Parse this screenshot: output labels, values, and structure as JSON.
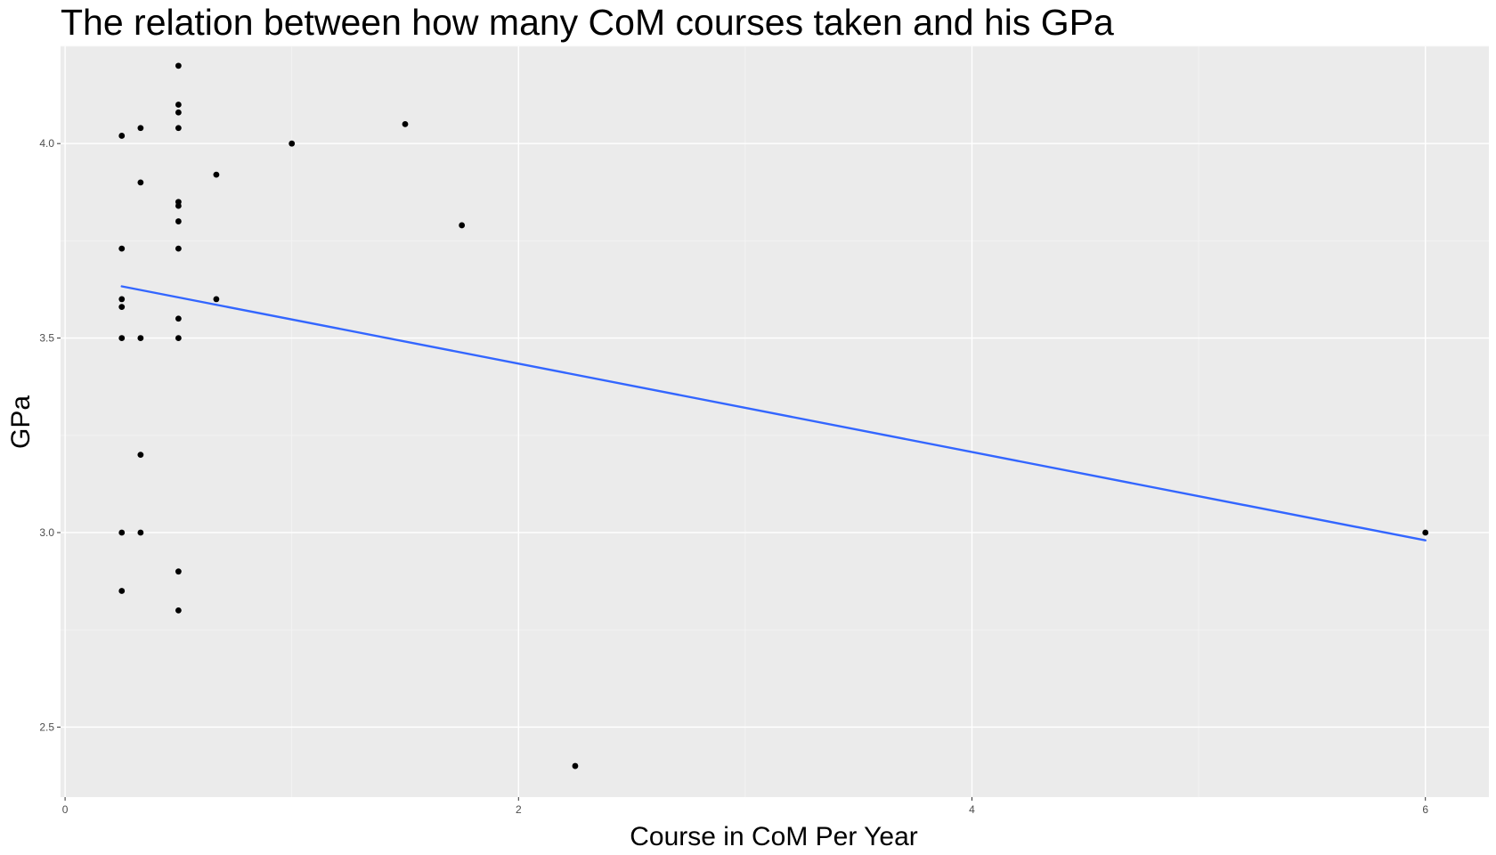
{
  "chart_data": {
    "type": "scatter",
    "title": "The relation between how many CoM courses taken and his GPa",
    "xlabel": "Course in CoM Per Year",
    "ylabel": "GPa",
    "xlim": [
      -0.02,
      6.28
    ],
    "ylim": [
      2.32,
      4.25
    ],
    "x_ticks": [
      0,
      2,
      4,
      6
    ],
    "x_tick_labels": [
      "0",
      "2",
      "4",
      "6"
    ],
    "y_ticks": [
      2.5,
      3.0,
      3.5,
      4.0
    ],
    "y_tick_labels": [
      "2.5",
      "3.0",
      "3.5",
      "4.0"
    ],
    "grid": true,
    "legend": "none",
    "colors": {
      "panel_background": "#ebebeb",
      "grid_major": "#ffffff",
      "grid_minor": "#f4f4f4",
      "points": "#000000",
      "trend_line": "#3366ff"
    },
    "points": [
      {
        "x": 0.25,
        "y": 4.02
      },
      {
        "x": 0.25,
        "y": 3.73
      },
      {
        "x": 0.25,
        "y": 3.6
      },
      {
        "x": 0.25,
        "y": 3.58
      },
      {
        "x": 0.25,
        "y": 3.5
      },
      {
        "x": 0.25,
        "y": 3.0
      },
      {
        "x": 0.25,
        "y": 2.85
      },
      {
        "x": 0.333,
        "y": 4.04
      },
      {
        "x": 0.333,
        "y": 3.9
      },
      {
        "x": 0.333,
        "y": 3.5
      },
      {
        "x": 0.333,
        "y": 3.2
      },
      {
        "x": 0.333,
        "y": 3.0
      },
      {
        "x": 0.5,
        "y": 4.2
      },
      {
        "x": 0.5,
        "y": 4.1
      },
      {
        "x": 0.5,
        "y": 4.08
      },
      {
        "x": 0.5,
        "y": 4.04
      },
      {
        "x": 0.5,
        "y": 3.85
      },
      {
        "x": 0.5,
        "y": 3.84
      },
      {
        "x": 0.5,
        "y": 3.8
      },
      {
        "x": 0.5,
        "y": 3.73
      },
      {
        "x": 0.5,
        "y": 3.55
      },
      {
        "x": 0.5,
        "y": 3.5
      },
      {
        "x": 0.5,
        "y": 2.9
      },
      {
        "x": 0.5,
        "y": 2.8
      },
      {
        "x": 0.667,
        "y": 3.92
      },
      {
        "x": 0.667,
        "y": 3.6
      },
      {
        "x": 1.0,
        "y": 4.0
      },
      {
        "x": 1.5,
        "y": 4.05
      },
      {
        "x": 1.75,
        "y": 3.79
      },
      {
        "x": 2.25,
        "y": 2.4
      },
      {
        "x": 6.0,
        "y": 3.0
      }
    ],
    "trend_line": {
      "method": "linear",
      "x": [
        0.25,
        6.0
      ],
      "y": [
        3.633,
        2.98
      ]
    }
  }
}
